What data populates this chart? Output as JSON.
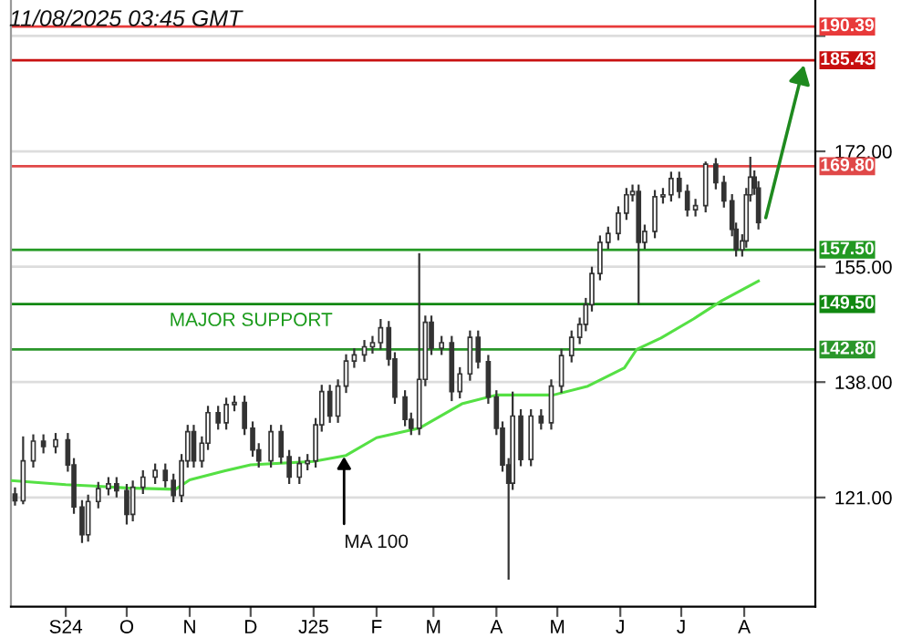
{
  "chart_data": {
    "type": "candlestick",
    "color": "#333333",
    "x": [
      "2024-08-07",
      "2024-08-11",
      "2024-08-16",
      "2024-08-21",
      "2024-08-27",
      "2024-09-02",
      "2024-09-05",
      "2024-09-09",
      "2024-09-12",
      "2024-09-17",
      "2024-09-22",
      "2024-09-26",
      "2024-10-01",
      "2024-10-04",
      "2024-10-09",
      "2024-10-15",
      "2024-10-20",
      "2024-10-24",
      "2024-10-28",
      "2024-10-31",
      "2024-11-03",
      "2024-11-07",
      "2024-11-10",
      "2024-11-15",
      "2024-11-19",
      "2024-11-23",
      "2024-11-28",
      "2024-12-02",
      "2024-12-05",
      "2024-12-11",
      "2024-12-16",
      "2024-12-20",
      "2024-12-25",
      "2024-12-29",
      "2025-01-02",
      "2025-01-05",
      "2025-01-09",
      "2025-01-13",
      "2025-01-17",
      "2025-01-21",
      "2025-01-26",
      "2025-01-30",
      "2025-02-03",
      "2025-02-07",
      "2025-02-10",
      "2025-02-15",
      "2025-02-18",
      "2025-02-22",
      "2025-02-25",
      "2025-02-28",
      "2025-03-05",
      "2025-03-10",
      "2025-03-14",
      "2025-03-19",
      "2025-03-23",
      "2025-03-28",
      "2025-04-01",
      "2025-04-04",
      "2025-04-07",
      "2025-04-09",
      "2025-04-13",
      "2025-04-18",
      "2025-04-23",
      "2025-04-28",
      "2025-05-03",
      "2025-05-08",
      "2025-05-12",
      "2025-05-15",
      "2025-05-18",
      "2025-05-22",
      "2025-05-26",
      "2025-05-31",
      "2025-06-04",
      "2025-06-07",
      "2025-06-10",
      "2025-06-13",
      "2025-06-18",
      "2025-06-22",
      "2025-06-26",
      "2025-06-30",
      "2025-07-04",
      "2025-07-08",
      "2025-07-13",
      "2025-07-18",
      "2025-07-22",
      "2025-07-26",
      "2025-07-28",
      "2025-07-31",
      "2025-08-02",
      "2025-08-04",
      "2025-08-06",
      "2025-08-08"
    ],
    "ohlc": [
      [
        121.5,
        122.5,
        119.8,
        120.5
      ],
      [
        120.5,
        130,
        120,
        126.4
      ],
      [
        126.4,
        130.3,
        125.4,
        129.3
      ],
      [
        129.3,
        130.3,
        127.5,
        128.5
      ],
      [
        128.5,
        130.5,
        127.5,
        129.5
      ],
      [
        129.5,
        130.5,
        124.8,
        125.8
      ],
      [
        125.8,
        126.8,
        118.6,
        119.6
      ],
      [
        119.6,
        120.6,
        114.3,
        115.5
      ],
      [
        115.5,
        121.4,
        114.5,
        120.4
      ],
      [
        120.4,
        123.3,
        119.4,
        122.3
      ],
      [
        122.3,
        124,
        121.3,
        123
      ],
      [
        123,
        124,
        121,
        122
      ],
      [
        122,
        123,
        117,
        118.5
      ],
      [
        118.5,
        123.5,
        117.5,
        122.5
      ],
      [
        122.5,
        125,
        121.5,
        124
      ],
      [
        124,
        126,
        123,
        125
      ],
      [
        125,
        126,
        122.5,
        123.5
      ],
      [
        123.5,
        124.5,
        120.3,
        121.3
      ],
      [
        121.3,
        127.4,
        120.3,
        126.4
      ],
      [
        126.4,
        131.7,
        125.4,
        130.7
      ],
      [
        130.7,
        131.7,
        125.4,
        126.4
      ],
      [
        126.4,
        130,
        125.4,
        129
      ],
      [
        129,
        134.5,
        128,
        133.5
      ],
      [
        133.5,
        134.5,
        131,
        132
      ],
      [
        132,
        135.7,
        131,
        134.7
      ],
      [
        134.7,
        136,
        133.7,
        135
      ],
      [
        135,
        136,
        130.2,
        131.2
      ],
      [
        131.2,
        132.2,
        127,
        128
      ],
      [
        128,
        129,
        125.4,
        126.4
      ],
      [
        126.4,
        131.7,
        125.4,
        130.7
      ],
      [
        130.7,
        131.7,
        126,
        127
      ],
      [
        127,
        128,
        123,
        124
      ],
      [
        124,
        127,
        123,
        126
      ],
      [
        126,
        127.4,
        125,
        126.4
      ],
      [
        126.4,
        132.7,
        125.4,
        131.7
      ],
      [
        131.7,
        137.6,
        130.7,
        136.6
      ],
      [
        136.6,
        137.6,
        132,
        133
      ],
      [
        133,
        138.4,
        132,
        137.4
      ],
      [
        137.4,
        142.1,
        136.4,
        141.1
      ],
      [
        141.1,
        143,
        140.1,
        142
      ],
      [
        142,
        144.2,
        141,
        143.2
      ],
      [
        143.2,
        144.8,
        142.2,
        143.8
      ],
      [
        143.8,
        147.3,
        142.8,
        146
      ],
      [
        146,
        147,
        140.4,
        141.4
      ],
      [
        141.4,
        142.4,
        134.8,
        135.8
      ],
      [
        135.8,
        136.8,
        131.5,
        132.5
      ],
      [
        132.5,
        133.5,
        130.2,
        131.2
      ],
      [
        131.2,
        157,
        130.2,
        138.4
      ],
      [
        138.4,
        147.8,
        137.4,
        146.8
      ],
      [
        146.8,
        147.8,
        142,
        143
      ],
      [
        143,
        144.8,
        142,
        143.8
      ],
      [
        143.8,
        144.8,
        135.2,
        136.6
      ],
      [
        136.6,
        140.2,
        135.6,
        139.2
      ],
      [
        139.2,
        145.6,
        138.2,
        144.6
      ],
      [
        144.6,
        145.6,
        140,
        141
      ],
      [
        141,
        142,
        134.8,
        135.8
      ],
      [
        135.8,
        136.8,
        130.2,
        131.2
      ],
      [
        131.2,
        132.2,
        124.8,
        125.8
      ],
      [
        125.8,
        126.8,
        108.9,
        123.1
      ],
      [
        123.1,
        136.6,
        122.1,
        133
      ],
      [
        133,
        134,
        125.6,
        126.6
      ],
      [
        126.6,
        134,
        125.6,
        133
      ],
      [
        133,
        134,
        131,
        132
      ],
      [
        132,
        138.4,
        131,
        137.4
      ],
      [
        137.4,
        142.9,
        136.4,
        141.9
      ],
      [
        141.9,
        145.6,
        140.9,
        144.6
      ],
      [
        144.6,
        147.5,
        143.6,
        146.5
      ],
      [
        146.5,
        150.4,
        145.5,
        149.4
      ],
      [
        149.4,
        155,
        148.4,
        154
      ],
      [
        154,
        159.6,
        153,
        158.6
      ],
      [
        158.6,
        160.9,
        157.6,
        159.9
      ],
      [
        159.9,
        163.9,
        158.9,
        162.9
      ],
      [
        162.9,
        166.6,
        161.9,
        165.6
      ],
      [
        165.6,
        167.1,
        164.6,
        166.1
      ],
      [
        166.1,
        167.1,
        149.4,
        158.6
      ],
      [
        158.6,
        161.2,
        157.6,
        160.2
      ],
      [
        160.2,
        166.3,
        159.2,
        165.3
      ],
      [
        165.3,
        166.6,
        164.3,
        165.6
      ],
      [
        165.6,
        169,
        164.6,
        168
      ],
      [
        168,
        169,
        165.1,
        166.1
      ],
      [
        166.1,
        167.1,
        162.4,
        163.4
      ],
      [
        163.4,
        165,
        162.4,
        164
      ],
      [
        164,
        170.5,
        163,
        170.1
      ],
      [
        170.1,
        171,
        166.4,
        167.4
      ],
      [
        167.4,
        168.4,
        163.7,
        164.7
      ],
      [
        164.7,
        165.7,
        159.5,
        160.5
      ],
      [
        160.5,
        161.5,
        156.5,
        157.5
      ],
      [
        157.5,
        159.8,
        156.5,
        158.8
      ],
      [
        158.8,
        166.6,
        157.8,
        165.6
      ],
      [
        165.6,
        171.2,
        164.6,
        168.2
      ],
      [
        168.2,
        169.2,
        165.6,
        166.6
      ],
      [
        166.6,
        167.6,
        160.5,
        161.5
      ]
    ],
    "series": [
      {
        "type": "line",
        "color": "#55e044",
        "x": [
          "2024-08-05",
          "2024-09-01",
          "2024-09-15",
          "2024-10-01",
          "2024-10-25",
          "2024-11-01",
          "2024-11-18",
          "2024-12-01",
          "2025-01-01",
          "2025-01-17",
          "2025-02-01",
          "2025-02-22",
          "2025-03-15",
          "2025-04-01",
          "2025-04-29",
          "2025-05-16",
          "2025-06-03",
          "2025-06-09",
          "2025-06-21",
          "2025-07-07",
          "2025-07-21",
          "2025-08-08"
        ],
        "values": [
          123.5,
          122.9,
          122.7,
          122.4,
          122.2,
          123.6,
          124.9,
          125.8,
          126.3,
          127.2,
          129.8,
          131.2,
          134.8,
          136.1,
          136.1,
          137.4,
          140.1,
          142.8,
          144.5,
          147.3,
          150,
          152.9
        ]
      }
    ],
    "xlim": [
      "2024-08-05",
      "2025-09-05"
    ],
    "xticks": [
      {
        "value": "2024-09-01",
        "label": "S24"
      },
      {
        "value": "2024-10-01",
        "label": "O"
      },
      {
        "value": "2024-11-01",
        "label": "N"
      },
      {
        "value": "2024-12-01",
        "label": "D"
      },
      {
        "value": "2025-01-01",
        "label": "J25"
      },
      {
        "value": "2025-02-01",
        "label": "F"
      },
      {
        "value": "2025-03-01",
        "label": "M"
      },
      {
        "value": "2025-04-01",
        "label": "A"
      },
      {
        "value": "2025-05-01",
        "label": "M"
      },
      {
        "value": "2025-06-01",
        "label": "J"
      },
      {
        "value": "2025-07-01",
        "label": "J"
      },
      {
        "value": "2025-08-01",
        "label": "A"
      }
    ],
    "ylim": [
      104.9,
      194.3
    ],
    "yticks": [
      {
        "value": 121,
        "label": "121.00"
      },
      {
        "value": 138,
        "label": "138.00"
      },
      {
        "value": 155,
        "label": "155.00"
      },
      {
        "value": 172,
        "label": "172.00"
      },
      {
        "value": 189,
        "label": null
      }
    ],
    "grid": "y",
    "ref_lines": [
      {
        "axis": "y",
        "value": 190.39,
        "label": "190.39",
        "color": "#e83a3a"
      },
      {
        "axis": "y",
        "value": 185.43,
        "label": "185.43",
        "color": "#c81010"
      },
      {
        "axis": "y",
        "value": 169.8,
        "label": "169.80",
        "color": "#e04848"
      },
      {
        "axis": "y",
        "value": 157.5,
        "label": "157.50",
        "color": "#229922"
      },
      {
        "axis": "y",
        "value": 149.5,
        "label": "149.50",
        "color": "#118811"
      },
      {
        "axis": "y",
        "value": 142.8,
        "label": "142.80",
        "color": "#2a962a"
      }
    ],
    "annotations": [
      "11/08/2025 03:45 GMT",
      {
        "text": "MAJOR SUPPORT",
        "x": "2024-10-22",
        "y": 149.5
      },
      {
        "text": "MA 100",
        "x": "2025-01-16",
        "y": 127
      }
    ]
  }
}
